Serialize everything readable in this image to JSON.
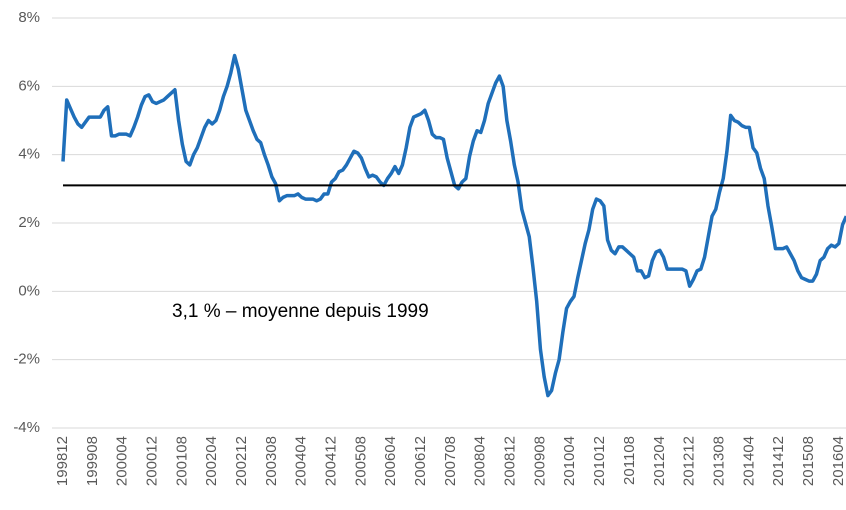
{
  "chart_data": {
    "type": "line",
    "categories": [
      "199812",
      null,
      null,
      null,
      null,
      null,
      null,
      null,
      "199908",
      null,
      null,
      null,
      null,
      null,
      null,
      null,
      "200004",
      null,
      null,
      null,
      null,
      null,
      null,
      null,
      "200012",
      null,
      null,
      null,
      null,
      null,
      null,
      null,
      "200108",
      null,
      null,
      null,
      null,
      null,
      null,
      null,
      "200204",
      null,
      null,
      null,
      null,
      null,
      null,
      null,
      "200212",
      null,
      null,
      null,
      null,
      null,
      null,
      null,
      "200308",
      null,
      null,
      null,
      null,
      null,
      null,
      null,
      "200404",
      null,
      null,
      null,
      null,
      null,
      null,
      null,
      "200412",
      null,
      null,
      null,
      null,
      null,
      null,
      null,
      "200508",
      null,
      null,
      null,
      null,
      null,
      null,
      null,
      "200604",
      null,
      null,
      null,
      null,
      null,
      null,
      null,
      "200612",
      null,
      null,
      null,
      null,
      null,
      null,
      null,
      "200708",
      null,
      null,
      null,
      null,
      null,
      null,
      null,
      "200804",
      null,
      null,
      null,
      null,
      null,
      null,
      null,
      "200812",
      null,
      null,
      null,
      null,
      null,
      null,
      null,
      "200908",
      null,
      null,
      null,
      null,
      null,
      null,
      null,
      "201004",
      null,
      null,
      null,
      null,
      null,
      null,
      null,
      "201012",
      null,
      null,
      null,
      null,
      null,
      null,
      null,
      "201108",
      null,
      null,
      null,
      null,
      null,
      null,
      null,
      "201204",
      null,
      null,
      null,
      null,
      null,
      null,
      null,
      "201212",
      null,
      null,
      null,
      null,
      null,
      null,
      null,
      "201308",
      null,
      null,
      null,
      null,
      null,
      null,
      null,
      "201404",
      null,
      null,
      null,
      null,
      null,
      null,
      null,
      "201412",
      null,
      null,
      null,
      null,
      null,
      null,
      null,
      "201508",
      null,
      null,
      null,
      null,
      null,
      null,
      null,
      "201604",
      null,
      null
    ],
    "values": [
      3.8,
      5.6,
      5.35,
      5.1,
      4.9,
      4.8,
      4.95,
      5.1,
      5.1,
      5.1,
      5.1,
      5.3,
      5.4,
      4.55,
      4.55,
      4.6,
      4.6,
      4.6,
      4.55,
      4.8,
      5.1,
      5.45,
      5.7,
      5.75,
      5.55,
      5.5,
      5.55,
      5.6,
      5.7,
      5.8,
      5.9,
      5.0,
      4.3,
      3.8,
      3.7,
      4.0,
      4.2,
      4.5,
      4.8,
      5.0,
      4.9,
      5.0,
      5.3,
      5.7,
      6.0,
      6.4,
      6.9,
      6.5,
      5.9,
      5.3,
      5.0,
      4.7,
      4.45,
      4.35,
      4.0,
      3.7,
      3.35,
      3.15,
      2.65,
      2.75,
      2.8,
      2.8,
      2.8,
      2.85,
      2.75,
      2.7,
      2.7,
      2.7,
      2.65,
      2.7,
      2.85,
      2.85,
      3.2,
      3.3,
      3.5,
      3.55,
      3.7,
      3.9,
      4.1,
      4.05,
      3.9,
      3.6,
      3.35,
      3.4,
      3.35,
      3.2,
      3.1,
      3.3,
      3.45,
      3.65,
      3.45,
      3.7,
      4.2,
      4.8,
      5.1,
      5.15,
      5.2,
      5.3,
      5.0,
      4.6,
      4.5,
      4.5,
      4.45,
      3.9,
      3.5,
      3.1,
      3.0,
      3.2,
      3.3,
      3.95,
      4.4,
      4.7,
      4.65,
      5.0,
      5.5,
      5.8,
      6.1,
      6.3,
      6.0,
      5.0,
      4.4,
      3.7,
      3.2,
      2.4,
      2.0,
      1.6,
      0.7,
      -0.3,
      -1.7,
      -2.5,
      -3.05,
      -2.9,
      -2.4,
      -2.0,
      -1.2,
      -0.5,
      -0.3,
      -0.15,
      0.4,
      0.9,
      1.4,
      1.8,
      2.4,
      2.7,
      2.65,
      2.5,
      1.5,
      1.2,
      1.1,
      1.3,
      1.3,
      1.2,
      1.1,
      1.0,
      0.6,
      0.6,
      0.4,
      0.45,
      0.9,
      1.15,
      1.2,
      1.0,
      0.65,
      0.65,
      0.65,
      0.65,
      0.65,
      0.6,
      0.15,
      0.35,
      0.6,
      0.65,
      1.0,
      1.6,
      2.2,
      2.4,
      2.9,
      3.3,
      4.1,
      5.15,
      5.0,
      4.95,
      4.85,
      4.8,
      4.8,
      4.2,
      4.05,
      3.6,
      3.3,
      2.5,
      1.9,
      1.25,
      1.25,
      1.25,
      1.3,
      1.1,
      0.9,
      0.6,
      0.4,
      0.35,
      0.3,
      0.3,
      0.5,
      0.9,
      1.0,
      1.25,
      1.35,
      1.3,
      1.4,
      1.95,
      2.2
    ],
    "color": "#1f6fba",
    "reference_line": {
      "value": 3.1,
      "label": "3,1 % – moyenne depuis 1999",
      "color": "#000000"
    },
    "ylim": [
      -4,
      8
    ],
    "yticks": [
      {
        "value": -4,
        "label": "-4%"
      },
      {
        "value": -2,
        "label": "-2%"
      },
      {
        "value": 0,
        "label": "0%"
      },
      {
        "value": 2,
        "label": "2%"
      },
      {
        "value": 4,
        "label": "4%"
      },
      {
        "value": 6,
        "label": "6%"
      },
      {
        "value": 8,
        "label": "8%"
      }
    ],
    "grid": true
  }
}
